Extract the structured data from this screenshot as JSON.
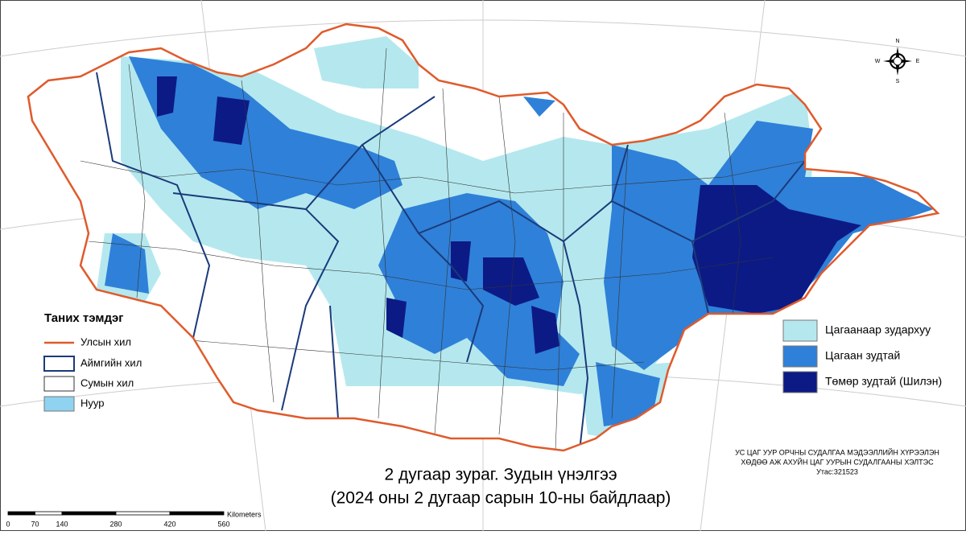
{
  "map": {
    "title_line1": "2 дугаар зураг. Зудын үнэлгээ",
    "title_line2": "(2024 оны 2 дугаар сарын 10-ны байдлаар)"
  },
  "legend": {
    "title": "Таних тэмдэг",
    "items": [
      {
        "label": "Улсын хил"
      },
      {
        "label": "Аймгийн хил"
      },
      {
        "label": "Сумын хил"
      },
      {
        "label": "Нуур"
      }
    ]
  },
  "zud_legend": {
    "items": [
      {
        "label": "Цагаанаар зудархуу",
        "color": "#b4e8ee"
      },
      {
        "label": "Цагаан зудтай",
        "color": "#2f80d8"
      },
      {
        "label": "Төмөр зудтай (Шилэн)",
        "color": "#0c1a86"
      }
    ]
  },
  "credit": {
    "lines": [
      "УС ЦАГ УУР ОРЧНЫ СУДАЛГАА МЭДЭЭЛЛИЙН ХҮРЭЭЛЭН",
      "ХӨДӨӨ АЖ АХУЙН ЦАГ УУРЫН СУДАЛГААНЫ ХЭЛТЭС",
      "Утас:321523"
    ]
  },
  "scale": {
    "unit": "Kilometers",
    "ticks": [
      0,
      70,
      140,
      280,
      420,
      560
    ]
  },
  "compass": {
    "n": "N",
    "s": "S",
    "e": "E",
    "w": "W"
  }
}
